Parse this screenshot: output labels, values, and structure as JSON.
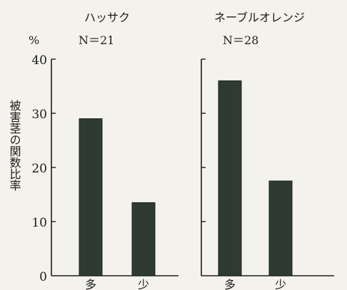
{
  "chart_data": {
    "type": "bar",
    "ylabel": "被害茎の関数比率",
    "yunit": "%",
    "ylim": [
      0,
      40
    ],
    "yticks": [
      0,
      10,
      20,
      30,
      40
    ],
    "categories": [
      "多",
      "少"
    ],
    "panels": [
      {
        "title": "ハッサク",
        "n_label": "N＝21",
        "values": [
          29,
          13.5
        ],
        "bar_color": "#2e3b34"
      },
      {
        "title": "ネーブルオレンジ",
        "n_label": "N＝28",
        "values": [
          36,
          17.5
        ],
        "bar_color": "#2e3b34"
      }
    ]
  }
}
